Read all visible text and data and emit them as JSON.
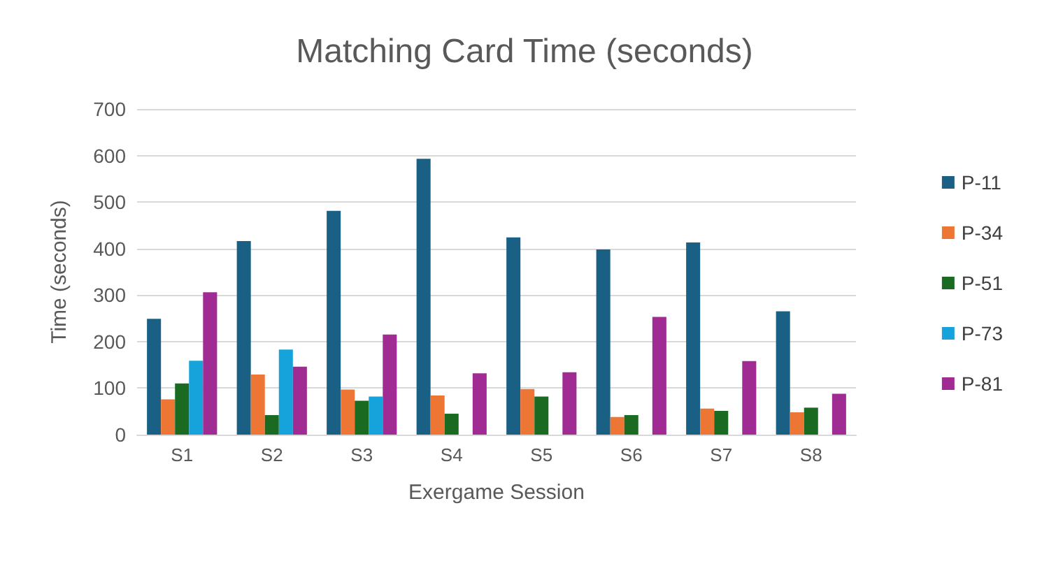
{
  "chart_data": {
    "type": "bar",
    "title": "Matching Card Time (seconds)",
    "xlabel": "Exergame Session",
    "ylabel": "Time (seconds)",
    "categories": [
      "S1",
      "S2",
      "S3",
      "S4",
      "S5",
      "S6",
      "S7",
      "S8"
    ],
    "series": [
      {
        "name": "P-11",
        "color": "#1a5f84",
        "values": [
          249,
          416,
          481,
          593,
          424,
          398,
          413,
          265
        ]
      },
      {
        "name": "P-34",
        "color": "#ee7634",
        "values": [
          76,
          129,
          97,
          84,
          98,
          38,
          56,
          48
        ]
      },
      {
        "name": "P-51",
        "color": "#1a6b21",
        "values": [
          110,
          42,
          73,
          45,
          82,
          42,
          51,
          58
        ]
      },
      {
        "name": "P-73",
        "color": "#16a3dc",
        "values": [
          159,
          183,
          82,
          null,
          null,
          null,
          null,
          null
        ]
      },
      {
        "name": "P-81",
        "color": "#a02b93",
        "values": [
          306,
          146,
          215,
          132,
          134,
          253,
          158,
          88
        ]
      }
    ],
    "ylim": [
      0,
      700
    ],
    "yticks": [
      0,
      100,
      200,
      300,
      400,
      500,
      600,
      700
    ],
    "grid": "y",
    "legend": "right"
  }
}
